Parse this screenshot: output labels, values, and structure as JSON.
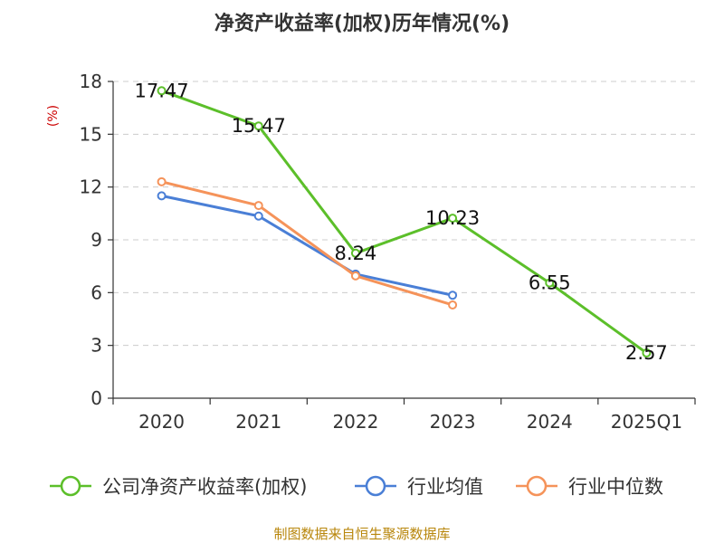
{
  "chart_data": {
    "type": "line",
    "title": "净资产收益率(加权)历年情况(%)",
    "ylabel": "(%)",
    "xlabel": "",
    "categories": [
      "2020",
      "2021",
      "2022",
      "2023",
      "2024",
      "2025Q1"
    ],
    "ylim": [
      0,
      18
    ],
    "yticks": [
      0,
      3,
      6,
      9,
      12,
      15,
      18
    ],
    "grid": true,
    "legend_position": "bottom",
    "series": [
      {
        "name": "公司净资产收益率(加权)",
        "color": "#5cbf2a",
        "values": [
          17.47,
          15.47,
          8.24,
          10.23,
          6.55,
          2.57
        ],
        "labels": [
          "17.47",
          "15.47",
          "8.24",
          "10.23",
          "6.55",
          "2.57"
        ]
      },
      {
        "name": "行业均值",
        "color": "#4a7fd6",
        "values": [
          11.5,
          10.35,
          7.05,
          5.85,
          null,
          null
        ]
      },
      {
        "name": "行业中位数",
        "color": "#f5935a",
        "values": [
          12.3,
          10.95,
          6.95,
          5.3,
          null,
          null
        ]
      }
    ]
  },
  "footer": {
    "source": "制图数据来自恒生聚源数据库"
  }
}
